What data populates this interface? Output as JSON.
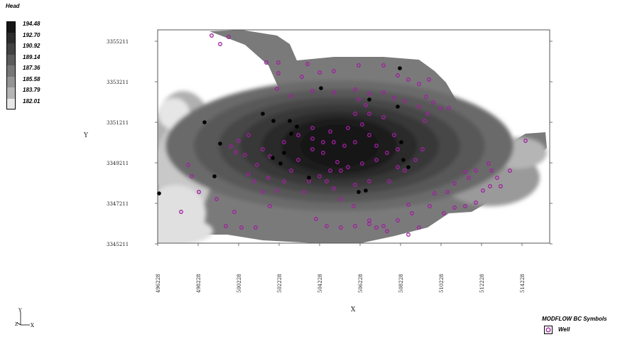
{
  "legend": {
    "title": "Head",
    "entries": [
      {
        "label": "194.48",
        "color": "#151515"
      },
      {
        "label": "192.70",
        "color": "#2c2c2c"
      },
      {
        "label": "190.92",
        "color": "#424242"
      },
      {
        "label": "189.14",
        "color": "#5c5c5c"
      },
      {
        "label": "187.36",
        "color": "#777777"
      },
      {
        "label": "185.58",
        "color": "#949494"
      },
      {
        "label": "183.79",
        "color": "#b4b4b4"
      },
      {
        "label": "182.01",
        "color": "#e8e8e8"
      }
    ]
  },
  "map": {
    "x_axis": {
      "label": "X",
      "ticks": [
        "496228",
        "498228",
        "500228",
        "502228",
        "504228",
        "506228",
        "508228",
        "510228",
        "512228",
        "514228"
      ]
    },
    "y_axis": {
      "label": "Y",
      "ticks": [
        "3355211",
        "3353211",
        "3351211",
        "3349211",
        "3347211",
        "3345211"
      ]
    },
    "colors": {
      "well_marker": "#a020a0",
      "dry_cell": "#000000",
      "frame": "#555555"
    }
  },
  "triad": {
    "y": "Y",
    "z": "Z",
    "x": "X"
  },
  "bc_legend": {
    "title": "MODFLOW BC Symbols",
    "item": "Well",
    "icon": "well-icon"
  }
}
